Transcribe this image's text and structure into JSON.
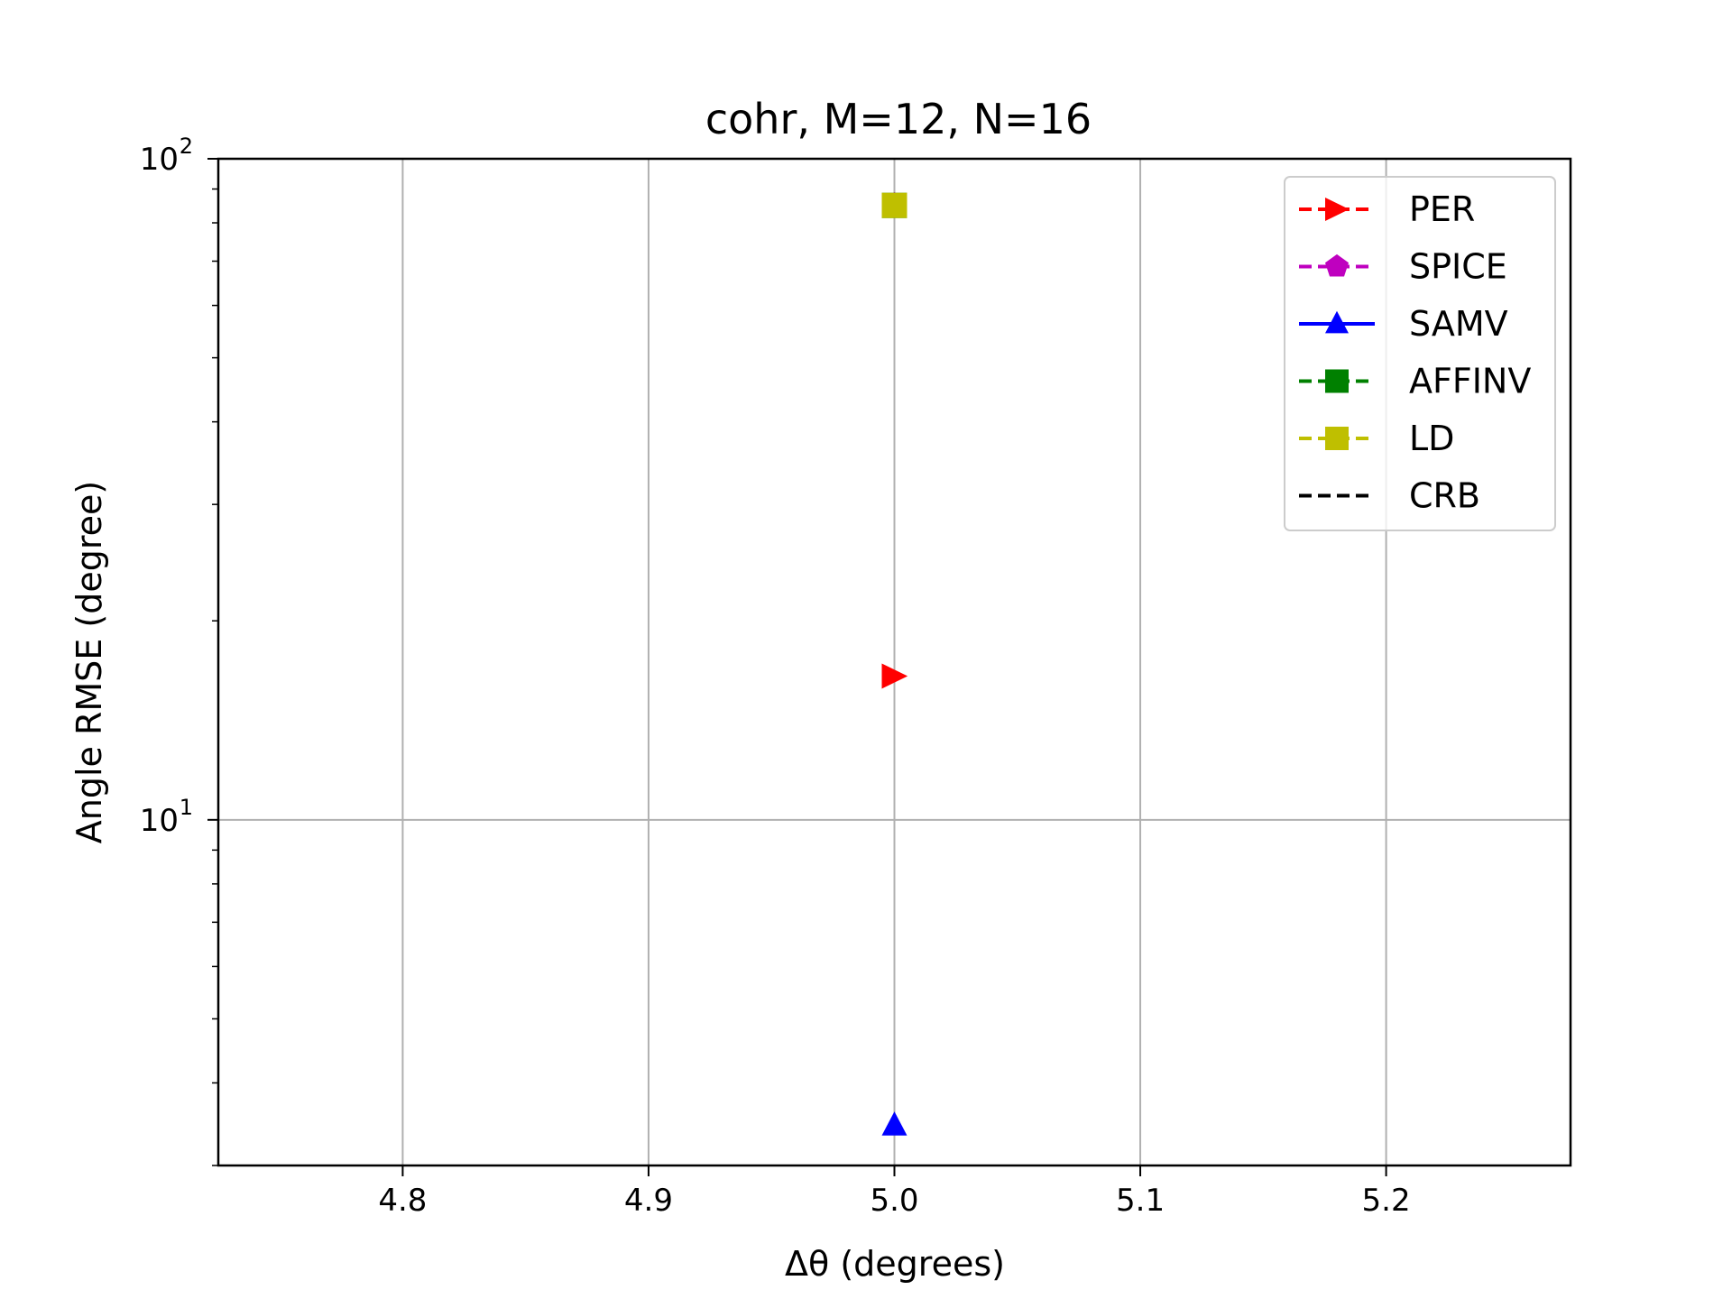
{
  "chart_data": {
    "type": "line",
    "title": "cohr, M=12, N=16",
    "xlabel": "Δθ (degrees)",
    "ylabel": "Angle RMSE (degree)",
    "xlim": [
      4.725,
      5.275
    ],
    "ylim": [
      3.0,
      100
    ],
    "yscale": "log",
    "grid": true,
    "legend_position": "top-right",
    "xticks": [
      {
        "value": 4.8,
        "label": "4.8"
      },
      {
        "value": 4.9,
        "label": "4.9"
      },
      {
        "value": 5.0,
        "label": "5.0"
      },
      {
        "value": 5.1,
        "label": "5.1"
      },
      {
        "value": 5.2,
        "label": "5.2"
      }
    ],
    "yticks_major": [
      {
        "value": 10,
        "base": "10",
        "exp": "1"
      },
      {
        "value": 100,
        "base": "10",
        "exp": "2"
      }
    ],
    "yticks_minor": [
      3,
      4,
      5,
      6,
      7,
      8,
      9,
      20,
      30,
      40,
      50,
      60,
      70,
      80,
      90
    ],
    "series": [
      {
        "name": "PER",
        "color": "#ff0000",
        "marker": "triangle-right",
        "linestyle": "dashed",
        "x": [
          5.0
        ],
        "values": [
          16.5
        ]
      },
      {
        "name": "SPICE",
        "color": "#bf00bf",
        "marker": "pentagon",
        "linestyle": "dashed",
        "x": [
          5.0
        ],
        "values": [
          85.0
        ]
      },
      {
        "name": "SAMV",
        "color": "#0000ff",
        "marker": "triangle-up",
        "linestyle": "solid",
        "x": [
          5.0
        ],
        "values": [
          3.45
        ]
      },
      {
        "name": "AFFINV",
        "color": "#008000",
        "marker": "square",
        "linestyle": "dashed",
        "x": [
          5.0
        ],
        "values": [
          85.0
        ]
      },
      {
        "name": "LD",
        "color": "#bfbf00",
        "marker": "square",
        "linestyle": "dashed",
        "x": [
          5.0
        ],
        "values": [
          85.0
        ]
      },
      {
        "name": "CRB",
        "color": "#000000",
        "marker": "none",
        "linestyle": "dashed",
        "x": [],
        "values": []
      }
    ]
  }
}
